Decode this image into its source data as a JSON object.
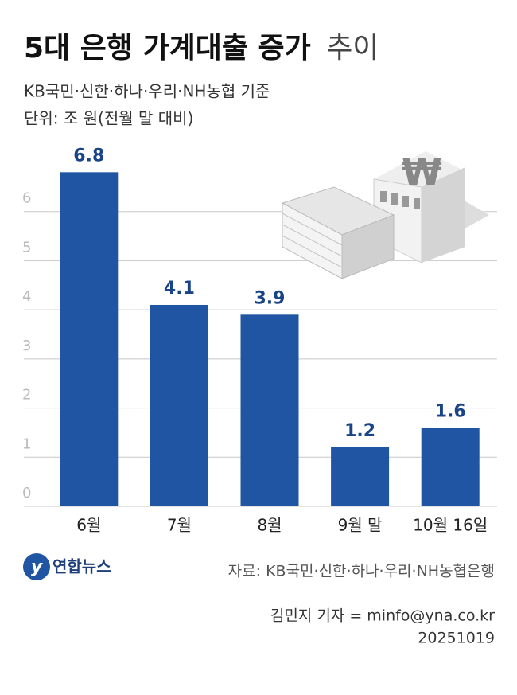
{
  "chart_data": {
    "type": "bar",
    "title": "5대 은행 가계대출 증가",
    "title_suffix": "추이",
    "subtitle": "KB국민·신한·하나·우리·NH농협 기준",
    "unit": "단위: 조 원(전월 말 대비)",
    "categories": [
      "6월",
      "7월",
      "8월",
      "9월 말",
      "10월 16일"
    ],
    "values": [
      6.8,
      4.1,
      3.9,
      1.2,
      1.6
    ],
    "color": "#1f55a3",
    "ylim": [
      0,
      7
    ],
    "yticks": [
      0,
      1,
      2,
      3,
      4,
      5,
      6
    ],
    "grid": true,
    "source": "자료: KB국민·신한·하나·우리·NH농협은행",
    "reporter": "김민지 기자 = minfo@yna.co.kr",
    "date": "20251019",
    "logo": "연합뉴스"
  }
}
